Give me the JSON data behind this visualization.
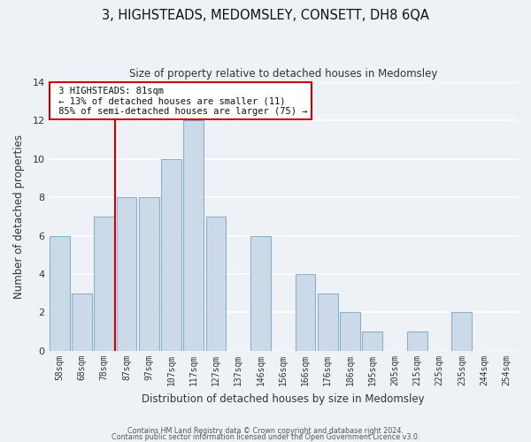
{
  "title": "3, HIGHSTEADS, MEDOMSLEY, CONSETT, DH8 6QA",
  "subtitle": "Size of property relative to detached houses in Medomsley",
  "xlabel": "Distribution of detached houses by size in Medomsley",
  "ylabel": "Number of detached properties",
  "bar_labels": [
    "58sqm",
    "68sqm",
    "78sqm",
    "87sqm",
    "97sqm",
    "107sqm",
    "117sqm",
    "127sqm",
    "137sqm",
    "146sqm",
    "156sqm",
    "166sqm",
    "176sqm",
    "186sqm",
    "195sqm",
    "205sqm",
    "215sqm",
    "225sqm",
    "235sqm",
    "244sqm",
    "254sqm"
  ],
  "bar_values": [
    6,
    3,
    7,
    8,
    8,
    10,
    12,
    7,
    0,
    6,
    0,
    4,
    3,
    2,
    1,
    0,
    1,
    0,
    2,
    0,
    0
  ],
  "bar_color": "#ccd9e8",
  "bar_edge_color": "#8ab0cc",
  "ylim": [
    0,
    14
  ],
  "yticks": [
    0,
    2,
    4,
    6,
    8,
    10,
    12,
    14
  ],
  "property_line_x": 2.5,
  "annotation_title": "3 HIGHSTEADS: 81sqm",
  "annotation_line1": "← 13% of detached houses are smaller (11)",
  "annotation_line2": "85% of semi-detached houses are larger (75) →",
  "annotation_box_color": "#ffffff",
  "annotation_box_edge": "#cc0000",
  "property_line_color": "#cc0000",
  "footer_line1": "Contains HM Land Registry data © Crown copyright and database right 2024.",
  "footer_line2": "Contains public sector information licensed under the Open Government Licence v3.0.",
  "background_color": "#eef2f7",
  "grid_color": "#ffffff"
}
